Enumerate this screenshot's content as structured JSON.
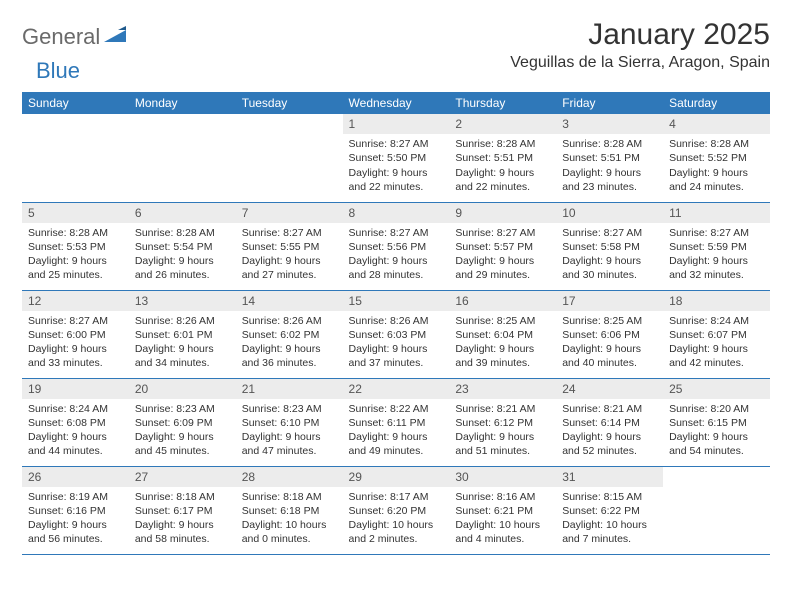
{
  "logo": {
    "text1": "General",
    "text2": "Blue"
  },
  "title": "January 2025",
  "location": "Veguillas de la Sierra, Aragon, Spain",
  "colors": {
    "header_bg": "#2f78b9",
    "header_text": "#ffffff",
    "daynum_bg": "#ececec",
    "border": "#2f78b9",
    "logo_gray": "#6a6a6a",
    "logo_blue": "#2f78b9"
  },
  "daysOfWeek": [
    "Sunday",
    "Monday",
    "Tuesday",
    "Wednesday",
    "Thursday",
    "Friday",
    "Saturday"
  ],
  "weeks": [
    [
      {
        "n": "",
        "sunrise": "",
        "sunset": "",
        "daylight": ""
      },
      {
        "n": "",
        "sunrise": "",
        "sunset": "",
        "daylight": ""
      },
      {
        "n": "",
        "sunrise": "",
        "sunset": "",
        "daylight": ""
      },
      {
        "n": "1",
        "sunrise": "8:27 AM",
        "sunset": "5:50 PM",
        "daylight": "9 hours and 22 minutes"
      },
      {
        "n": "2",
        "sunrise": "8:28 AM",
        "sunset": "5:51 PM",
        "daylight": "9 hours and 22 minutes"
      },
      {
        "n": "3",
        "sunrise": "8:28 AM",
        "sunset": "5:51 PM",
        "daylight": "9 hours and 23 minutes"
      },
      {
        "n": "4",
        "sunrise": "8:28 AM",
        "sunset": "5:52 PM",
        "daylight": "9 hours and 24 minutes"
      }
    ],
    [
      {
        "n": "5",
        "sunrise": "8:28 AM",
        "sunset": "5:53 PM",
        "daylight": "9 hours and 25 minutes"
      },
      {
        "n": "6",
        "sunrise": "8:28 AM",
        "sunset": "5:54 PM",
        "daylight": "9 hours and 26 minutes"
      },
      {
        "n": "7",
        "sunrise": "8:27 AM",
        "sunset": "5:55 PM",
        "daylight": "9 hours and 27 minutes"
      },
      {
        "n": "8",
        "sunrise": "8:27 AM",
        "sunset": "5:56 PM",
        "daylight": "9 hours and 28 minutes"
      },
      {
        "n": "9",
        "sunrise": "8:27 AM",
        "sunset": "5:57 PM",
        "daylight": "9 hours and 29 minutes"
      },
      {
        "n": "10",
        "sunrise": "8:27 AM",
        "sunset": "5:58 PM",
        "daylight": "9 hours and 30 minutes"
      },
      {
        "n": "11",
        "sunrise": "8:27 AM",
        "sunset": "5:59 PM",
        "daylight": "9 hours and 32 minutes"
      }
    ],
    [
      {
        "n": "12",
        "sunrise": "8:27 AM",
        "sunset": "6:00 PM",
        "daylight": "9 hours and 33 minutes"
      },
      {
        "n": "13",
        "sunrise": "8:26 AM",
        "sunset": "6:01 PM",
        "daylight": "9 hours and 34 minutes"
      },
      {
        "n": "14",
        "sunrise": "8:26 AM",
        "sunset": "6:02 PM",
        "daylight": "9 hours and 36 minutes"
      },
      {
        "n": "15",
        "sunrise": "8:26 AM",
        "sunset": "6:03 PM",
        "daylight": "9 hours and 37 minutes"
      },
      {
        "n": "16",
        "sunrise": "8:25 AM",
        "sunset": "6:04 PM",
        "daylight": "9 hours and 39 minutes"
      },
      {
        "n": "17",
        "sunrise": "8:25 AM",
        "sunset": "6:06 PM",
        "daylight": "9 hours and 40 minutes"
      },
      {
        "n": "18",
        "sunrise": "8:24 AM",
        "sunset": "6:07 PM",
        "daylight": "9 hours and 42 minutes"
      }
    ],
    [
      {
        "n": "19",
        "sunrise": "8:24 AM",
        "sunset": "6:08 PM",
        "daylight": "9 hours and 44 minutes"
      },
      {
        "n": "20",
        "sunrise": "8:23 AM",
        "sunset": "6:09 PM",
        "daylight": "9 hours and 45 minutes"
      },
      {
        "n": "21",
        "sunrise": "8:23 AM",
        "sunset": "6:10 PM",
        "daylight": "9 hours and 47 minutes"
      },
      {
        "n": "22",
        "sunrise": "8:22 AM",
        "sunset": "6:11 PM",
        "daylight": "9 hours and 49 minutes"
      },
      {
        "n": "23",
        "sunrise": "8:21 AM",
        "sunset": "6:12 PM",
        "daylight": "9 hours and 51 minutes"
      },
      {
        "n": "24",
        "sunrise": "8:21 AM",
        "sunset": "6:14 PM",
        "daylight": "9 hours and 52 minutes"
      },
      {
        "n": "25",
        "sunrise": "8:20 AM",
        "sunset": "6:15 PM",
        "daylight": "9 hours and 54 minutes"
      }
    ],
    [
      {
        "n": "26",
        "sunrise": "8:19 AM",
        "sunset": "6:16 PM",
        "daylight": "9 hours and 56 minutes"
      },
      {
        "n": "27",
        "sunrise": "8:18 AM",
        "sunset": "6:17 PM",
        "daylight": "9 hours and 58 minutes"
      },
      {
        "n": "28",
        "sunrise": "8:18 AM",
        "sunset": "6:18 PM",
        "daylight": "10 hours and 0 minutes"
      },
      {
        "n": "29",
        "sunrise": "8:17 AM",
        "sunset": "6:20 PM",
        "daylight": "10 hours and 2 minutes"
      },
      {
        "n": "30",
        "sunrise": "8:16 AM",
        "sunset": "6:21 PM",
        "daylight": "10 hours and 4 minutes"
      },
      {
        "n": "31",
        "sunrise": "8:15 AM",
        "sunset": "6:22 PM",
        "daylight": "10 hours and 7 minutes"
      },
      {
        "n": "",
        "sunrise": "",
        "sunset": "",
        "daylight": ""
      }
    ]
  ],
  "labels": {
    "sunrise": "Sunrise:",
    "sunset": "Sunset:",
    "daylight": "Daylight:"
  }
}
